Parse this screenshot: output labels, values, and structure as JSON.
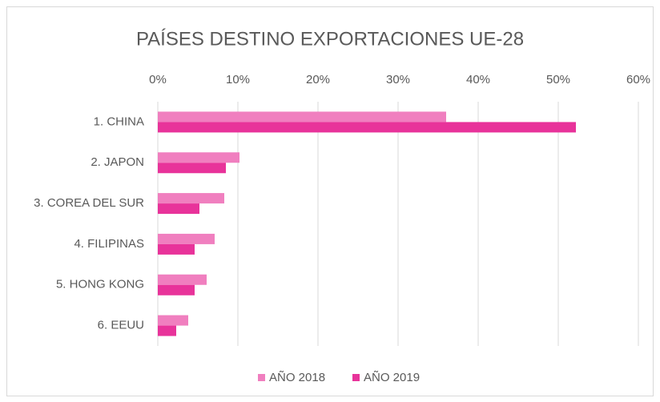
{
  "chart_data": {
    "type": "bar",
    "orientation": "horizontal",
    "title": "PAÍSES DESTINO EXPORTACIONES UE-28",
    "categories": [
      "1. CHINA",
      "2. JAPON",
      "3. COREA DEL SUR",
      "4. FILIPINAS",
      "5. HONG KONG",
      "6. EEUU"
    ],
    "series": [
      {
        "name": "AÑO 2018",
        "color": "#f07fbf",
        "values": [
          36,
          10.2,
          8.3,
          7.1,
          6.1,
          3.8
        ]
      },
      {
        "name": "AÑO 2019",
        "color": "#e8339a",
        "values": [
          52.2,
          8.5,
          5.2,
          4.6,
          4.6,
          2.3
        ]
      }
    ],
    "xlim": [
      0,
      60
    ],
    "xticks": [
      {
        "value": 0,
        "label": "0%"
      },
      {
        "value": 10,
        "label": "10%"
      },
      {
        "value": 20,
        "label": "20%"
      },
      {
        "value": 30,
        "label": "30%"
      },
      {
        "value": 40,
        "label": "40%"
      },
      {
        "value": 50,
        "label": "50%"
      },
      {
        "value": 60,
        "label": "60%"
      }
    ],
    "grid": true,
    "legend": "bottom"
  }
}
